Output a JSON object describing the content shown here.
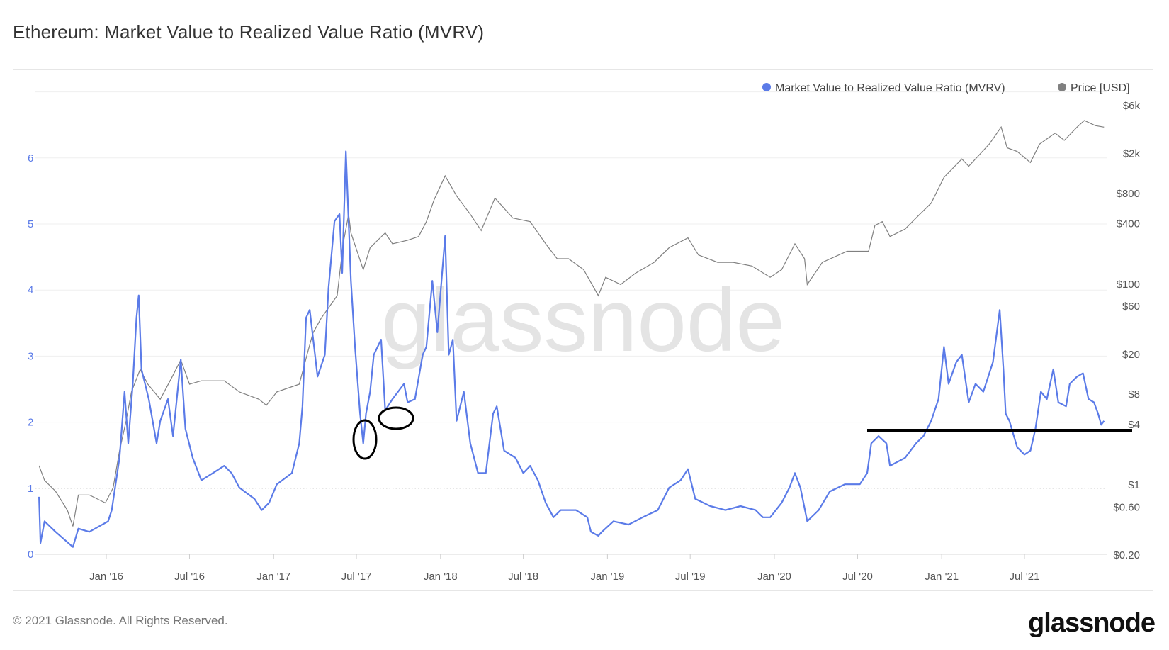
{
  "title": "Ethereum: Market Value to Realized Value Ratio (MVRV)",
  "footer": "© 2021 Glassnode. All Rights Reserved.",
  "logo": "glassnode",
  "watermark": "glassnode",
  "colors": {
    "mvrv": "#5b7be8",
    "price": "#808080",
    "annotation": "#000000"
  },
  "chart_data": {
    "type": "line",
    "title": "Ethereum: Market Value to Realized Value Ratio (MVRV)",
    "legend": {
      "placement": "top-right",
      "items": [
        "Market Value to Realized Value Ratio (MVRV)",
        "Price [USD]"
      ]
    },
    "grid": true,
    "x_ticks": [
      "Jan '16",
      "Jul '16",
      "Jan '17",
      "Jul '17",
      "Jan '18",
      "Jul '18",
      "Jan '19",
      "Jul '19",
      "Jan '20",
      "Jul '20",
      "Jan '21",
      "Jul '21"
    ],
    "x_tick_dates": [
      "2016-01-01",
      "2016-07-01",
      "2017-01-01",
      "2017-07-01",
      "2018-01-01",
      "2018-07-01",
      "2019-01-01",
      "2019-07-01",
      "2020-01-01",
      "2020-07-01",
      "2021-01-01",
      "2021-07-01"
    ],
    "y_left": {
      "ticks": [
        "0",
        "1",
        "2",
        "3",
        "4",
        "5",
        "6"
      ],
      "range": [
        0,
        7
      ],
      "reference_line": 1
    },
    "y_right": {
      "scale": "log",
      "ticks": [
        "$6k",
        "$2k",
        "$800",
        "$400",
        "$100",
        "$60",
        "$20",
        "$8",
        "$4",
        "$1",
        "$0.60",
        "$0.20"
      ],
      "tick_values": [
        6000,
        2000,
        800,
        400,
        100,
        60,
        20,
        8,
        4,
        1,
        0.6,
        0.2
      ],
      "range": [
        0.2,
        6000
      ]
    },
    "series": [
      {
        "name": "Market Value to Realized Value Ratio (MVRV)",
        "axis": "left",
        "x": [
          "2015-08-07",
          "2015-08-10",
          "2015-08-19",
          "2015-09-12",
          "2015-10-20",
          "2015-11-01",
          "2015-11-25",
          "2016-01-05",
          "2016-01-13",
          "2016-01-30",
          "2016-02-10",
          "2016-02-18",
          "2016-02-28",
          "2016-03-07",
          "2016-03-12",
          "2016-03-18",
          "2016-04-03",
          "2016-04-20",
          "2016-04-28",
          "2016-05-15",
          "2016-05-26",
          "2016-06-12",
          "2016-06-22",
          "2016-07-08",
          "2016-07-27",
          "2016-08-21",
          "2016-09-15",
          "2016-10-01",
          "2016-10-18",
          "2016-11-20",
          "2016-12-06",
          "2016-12-22",
          "2017-01-08",
          "2017-02-10",
          "2017-02-26",
          "2017-03-05",
          "2017-03-13",
          "2017-03-21",
          "2017-04-07",
          "2017-04-23",
          "2017-05-01",
          "2017-05-14",
          "2017-05-25",
          "2017-05-31",
          "2017-06-08",
          "2017-06-19",
          "2017-06-28",
          "2017-07-09",
          "2017-07-16",
          "2017-07-22",
          "2017-07-31",
          "2017-08-08",
          "2017-08-24",
          "2017-09-02",
          "2017-09-18",
          "2017-10-13",
          "2017-10-21",
          "2017-11-06",
          "2017-11-23",
          "2017-12-01",
          "2017-12-14",
          "2017-12-25",
          "2018-01-11",
          "2018-01-19",
          "2018-01-28",
          "2018-02-05",
          "2018-02-21",
          "2018-03-07",
          "2018-03-24",
          "2018-04-10",
          "2018-04-26",
          "2018-05-04",
          "2018-05-20",
          "2018-06-14",
          "2018-07-01",
          "2018-07-16",
          "2018-08-02",
          "2018-08-19",
          "2018-09-05",
          "2018-09-21",
          "2018-10-24",
          "2018-11-18",
          "2018-11-26",
          "2018-12-12",
          "2018-12-20",
          "2019-01-14",
          "2019-02-16",
          "2019-03-19",
          "2019-04-21",
          "2019-05-16",
          "2019-06-10",
          "2019-06-26",
          "2019-07-12",
          "2019-08-14",
          "2019-09-16",
          "2019-10-19",
          "2019-11-21",
          "2019-12-07",
          "2019-12-23",
          "2020-01-17",
          "2020-02-03",
          "2020-02-15",
          "2020-02-27",
          "2020-03-13",
          "2020-04-07",
          "2020-05-01",
          "2020-06-03",
          "2020-07-06",
          "2020-07-22",
          "2020-07-31",
          "2020-08-16",
          "2020-09-02",
          "2020-09-10",
          "2020-10-13",
          "2020-11-06",
          "2020-11-22",
          "2020-12-09",
          "2020-12-25",
          "2021-01-06",
          "2021-01-16",
          "2021-02-02",
          "2021-02-14",
          "2021-03-01",
          "2021-03-16",
          "2021-04-02",
          "2021-04-23",
          "2021-05-08",
          "2021-05-16",
          "2021-05-21",
          "2021-05-29",
          "2021-06-15",
          "2021-07-01",
          "2021-07-14",
          "2021-07-25",
          "2021-08-06",
          "2021-08-19",
          "2021-09-02",
          "2021-09-13",
          "2021-09-30",
          "2021-10-08",
          "2021-10-24",
          "2021-11-06",
          "2021-11-18",
          "2021-11-30",
          "2021-12-09",
          "2021-12-16",
          "2021-12-22"
        ],
        "y": [
          0.87,
          0.17,
          0.5,
          0.34,
          0.11,
          0.39,
          0.34,
          0.5,
          0.67,
          1.46,
          2.46,
          1.68,
          2.58,
          3.58,
          3.92,
          2.8,
          2.35,
          1.68,
          2.02,
          2.35,
          1.79,
          2.95,
          1.9,
          1.46,
          1.12,
          1.23,
          1.34,
          1.23,
          1.01,
          0.84,
          0.67,
          0.78,
          1.06,
          1.23,
          1.68,
          2.24,
          3.58,
          3.7,
          2.69,
          3.02,
          4.03,
          5.04,
          5.15,
          4.26,
          6.1,
          4.14,
          3.14,
          2.13,
          1.68,
          2.13,
          2.46,
          3.02,
          3.25,
          2.18,
          2.35,
          2.58,
          2.3,
          2.35,
          3.02,
          3.14,
          4.14,
          3.36,
          4.82,
          3.02,
          3.25,
          2.02,
          2.46,
          1.68,
          1.23,
          1.23,
          2.13,
          2.24,
          1.57,
          1.46,
          1.23,
          1.34,
          1.12,
          0.78,
          0.56,
          0.67,
          0.67,
          0.56,
          0.34,
          0.28,
          0.34,
          0.5,
          0.45,
          0.56,
          0.67,
          1.01,
          1.12,
          1.29,
          0.84,
          0.73,
          0.67,
          0.73,
          0.67,
          0.56,
          0.56,
          0.78,
          1.01,
          1.23,
          1.01,
          0.5,
          0.67,
          0.95,
          1.06,
          1.06,
          1.23,
          1.68,
          1.79,
          1.68,
          1.34,
          1.46,
          1.68,
          1.79,
          2.02,
          2.35,
          3.14,
          2.58,
          2.91,
          3.02,
          2.3,
          2.58,
          2.46,
          2.91,
          3.7,
          2.8,
          2.13,
          2.02,
          1.62,
          1.51,
          1.57,
          1.9,
          2.46,
          2.35,
          2.8,
          2.3,
          2.24,
          2.58,
          2.69,
          2.74,
          2.35,
          2.3,
          2.13,
          1.96,
          2.02
        ]
      },
      {
        "name": "Price [USD]",
        "axis": "right",
        "x": [
          "2015-08-07",
          "2015-08-19",
          "2015-09-12",
          "2015-10-08",
          "2015-10-20",
          "2015-11-01",
          "2015-11-25",
          "2015-12-30",
          "2016-01-16",
          "2016-01-30",
          "2016-02-13",
          "2016-02-25",
          "2016-03-15",
          "2016-04-01",
          "2016-04-28",
          "2016-05-24",
          "2016-06-12",
          "2016-07-01",
          "2016-07-27",
          "2016-09-15",
          "2016-10-18",
          "2016-11-30",
          "2016-12-16",
          "2017-01-08",
          "2017-02-26",
          "2017-03-15",
          "2017-03-28",
          "2017-04-15",
          "2017-05-20",
          "2017-06-02",
          "2017-06-14",
          "2017-06-19",
          "2017-07-16",
          "2017-07-31",
          "2017-09-02",
          "2017-09-18",
          "2017-10-21",
          "2017-11-14",
          "2017-12-01",
          "2017-12-18",
          "2018-01-11",
          "2018-02-05",
          "2018-03-07",
          "2018-03-31",
          "2018-04-30",
          "2018-06-08",
          "2018-07-16",
          "2018-08-19",
          "2018-09-13",
          "2018-10-08",
          "2018-11-10",
          "2018-12-12",
          "2018-12-28",
          "2019-01-30",
          "2019-03-03",
          "2019-04-13",
          "2019-05-16",
          "2019-06-26",
          "2019-07-19",
          "2019-08-30",
          "2019-10-03",
          "2019-11-13",
          "2019-12-23",
          "2020-01-17",
          "2020-02-15",
          "2020-03-07",
          "2020-03-13",
          "2020-04-15",
          "2020-06-08",
          "2020-07-25",
          "2020-08-08",
          "2020-08-24",
          "2020-09-10",
          "2020-10-13",
          "2020-11-14",
          "2020-12-09",
          "2021-01-06",
          "2021-02-14",
          "2021-03-01",
          "2021-04-15",
          "2021-05-11",
          "2021-05-24",
          "2021-06-15",
          "2021-07-14",
          "2021-08-03",
          "2021-09-06",
          "2021-09-26",
          "2021-10-24",
          "2021-11-09",
          "2021-12-03",
          "2021-12-22"
        ],
        "y": [
          1.53,
          1.09,
          0.85,
          0.55,
          0.38,
          0.78,
          0.78,
          0.65,
          0.92,
          2.15,
          4.2,
          8.3,
          13.9,
          9.9,
          7.0,
          11.7,
          17.3,
          9.9,
          10.7,
          10.7,
          8.3,
          7.0,
          6.1,
          8.3,
          9.9,
          19.4,
          32,
          45,
          75.5,
          248,
          488,
          319,
          137,
          227,
          319,
          248,
          269,
          293,
          412,
          684,
          1178,
          745,
          488,
          336,
          708,
          448,
          412,
          248,
          176,
          176,
          137,
          75.5,
          115,
          97.5,
          126,
          162,
          227,
          284,
          192,
          162,
          162,
          149,
          115,
          137,
          248,
          176,
          97.5,
          162,
          209,
          209,
          378,
          412,
          293,
          348,
          488,
          630,
          1138,
          1738,
          1469,
          2443,
          3605,
          2244,
          2061,
          1600,
          2443,
          3148,
          2661,
          3605,
          4198,
          3733,
          3605
        ]
      }
    ],
    "annotations": [
      "ellipse near Jul '17 MVRV low",
      "ellipse near Sep '17 MVRV low",
      "horizontal line at MVRV ≈ 2 from Jul '20 onward"
    ]
  }
}
